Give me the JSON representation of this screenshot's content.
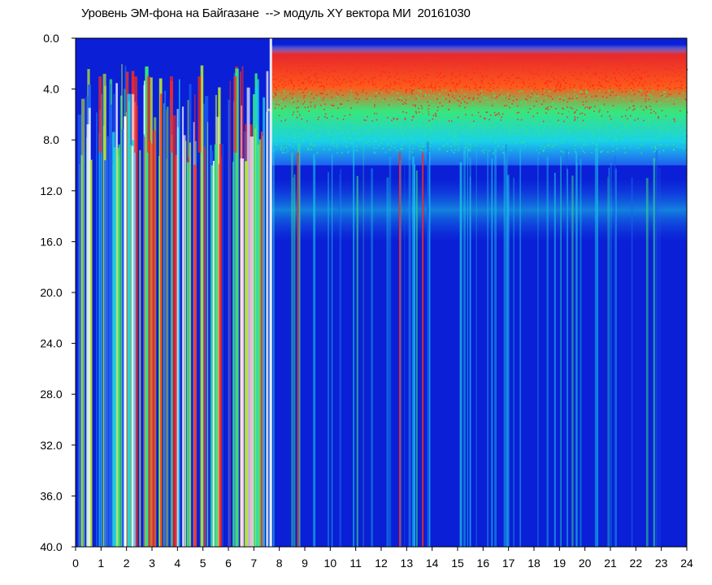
{
  "window": {
    "title": "Уровень ЭМ-фона на Байгазане  --> модуль XY вектора МИ  20161030"
  },
  "chart_data": {
    "type": "heatmap",
    "title": "Уровень ЭМ-фона на Байгазане  --> модуль XY вектора МИ  20161030",
    "xlabel": "",
    "ylabel": "",
    "x_ticks": [
      "0",
      "1",
      "2",
      "3",
      "4",
      "5",
      "6",
      "7",
      "8",
      "9",
      "10",
      "11",
      "12",
      "13",
      "14",
      "15",
      "16",
      "17",
      "18",
      "19",
      "20",
      "21",
      "22",
      "23",
      "24"
    ],
    "y_ticks": [
      "0.0",
      "4.0",
      "8.0",
      "12.0",
      "16.0",
      "20.0",
      "24.0",
      "28.0",
      "32.0",
      "36.0",
      "40.0"
    ],
    "xlim": [
      0,
      24
    ],
    "ylim": [
      0,
      40
    ],
    "y_inverted": true,
    "grid": false,
    "colormap": [
      "#0a1fd6",
      "#1e5ff0",
      "#19d2e6",
      "#39e67a",
      "#b9e832",
      "#ff2a1a",
      "#ffffff"
    ],
    "colors": {
      "background": "#ffffff",
      "plot_bg": "#0a1fd6",
      "axis": "#000000"
    }
  }
}
